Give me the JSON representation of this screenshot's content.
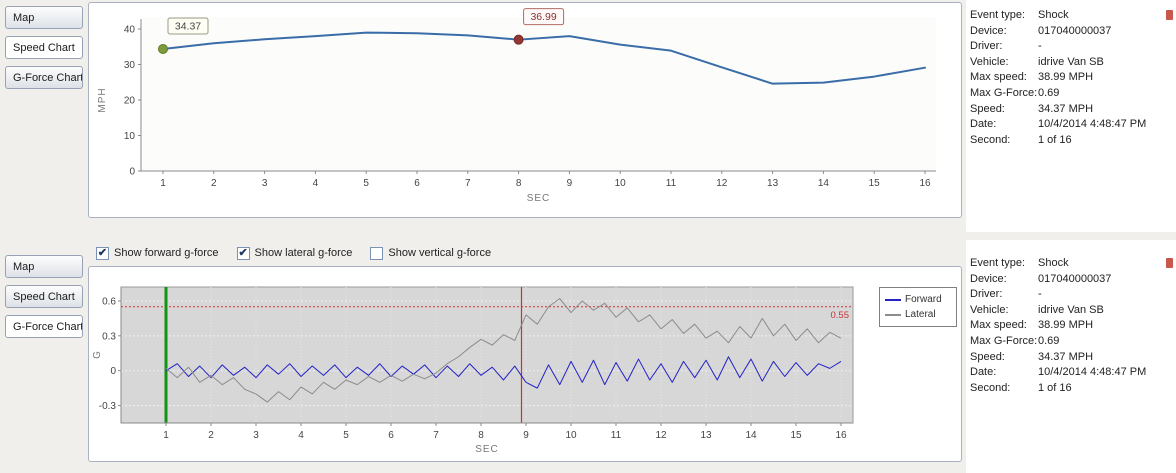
{
  "top_panel": {
    "tabs": [
      {
        "label": "Map",
        "selected": false
      },
      {
        "label": "Speed Chart",
        "selected": true
      },
      {
        "label": "G-Force Chart",
        "selected": false
      }
    ]
  },
  "bottom_panel": {
    "tabs": [
      {
        "label": "Map",
        "selected": false
      },
      {
        "label": "Speed Chart",
        "selected": false
      },
      {
        "label": "G-Force Chart",
        "selected": true
      }
    ],
    "checkboxes": [
      {
        "label": "Show forward g-force",
        "checked": true
      },
      {
        "label": "Show lateral g-force",
        "checked": true
      },
      {
        "label": "Show vertical g-force",
        "checked": false
      }
    ],
    "legend": [
      {
        "label": "Forward",
        "color": "#2323c8"
      },
      {
        "label": "Lateral",
        "color": "#8c8c8c"
      }
    ]
  },
  "info_rows": [
    {
      "label": "Event type:",
      "value": "Shock"
    },
    {
      "label": "Device:",
      "value": "017040000037"
    },
    {
      "label": "Driver:",
      "value": "-"
    },
    {
      "label": "Vehicle:",
      "value": "idrive Van SB"
    },
    {
      "label": "Max speed:",
      "value": "38.99 MPH"
    },
    {
      "label": "Max G-Force:",
      "value": "0.69"
    },
    {
      "label": "Speed:",
      "value": "34.37 MPH"
    },
    {
      "label": "Date:",
      "value": "10/4/2014 4:48:47 PM"
    },
    {
      "label": "Second:",
      "value": "1 of 16"
    }
  ],
  "chart_data": [
    {
      "type": "line",
      "title": "Speed chart",
      "xlabel": "SEC",
      "ylabel": "MPH",
      "x": [
        1,
        2,
        3,
        4,
        5,
        6,
        7,
        8,
        9,
        10,
        11,
        12,
        13,
        14,
        15,
        16
      ],
      "values": [
        34.37,
        36.0,
        37.1,
        38.0,
        38.99,
        38.8,
        38.2,
        36.99,
        38.0,
        35.6,
        33.9,
        29.2,
        24.6,
        24.9,
        26.6,
        29.1
      ],
      "ylim": [
        0,
        40
      ],
      "yticks": [
        0,
        10,
        20,
        30,
        40
      ],
      "xticks": [
        1,
        2,
        3,
        4,
        5,
        6,
        7,
        8,
        9,
        10,
        11,
        12,
        13,
        14,
        15,
        16
      ],
      "line_color": "#3a6da8",
      "markers": [
        {
          "x": 1,
          "y": 34.37,
          "label": "34.37",
          "color": "#7d9b3c",
          "edge": "#5f7a25",
          "label_border": "#9a9a84",
          "label_bg": "#fffef4",
          "text_color": "#444444"
        },
        {
          "x": 8,
          "y": 36.99,
          "label": "36.99",
          "color": "#943634",
          "edge": "#772826",
          "label_border": "#b36a66",
          "label_bg": "#fffafa",
          "text_color": "#8a3030"
        }
      ]
    },
    {
      "type": "line",
      "title": "G-Force chart",
      "xlabel": "SEC",
      "ylabel": "G",
      "x_start": 1,
      "x_step": 0.25,
      "ylim": [
        -0.45,
        0.72
      ],
      "yticks": [
        -0.3,
        0,
        0.3,
        0.6
      ],
      "xticks": [
        1,
        2,
        3,
        4,
        5,
        6,
        7,
        8,
        9,
        10,
        11,
        12,
        13,
        14,
        15,
        16
      ],
      "plot_bg": "#d7d7d7",
      "threshold": {
        "value": 0.55,
        "label": "0.55",
        "color": "#cc3333"
      },
      "vlines": [
        {
          "x": 1,
          "color": "#149314",
          "width": 3
        },
        {
          "x": 8.9,
          "color": "#d03030",
          "width": 1.2
        }
      ],
      "series": [
        {
          "name": "Forward",
          "color": "#2323c8",
          "values": [
            0.0,
            0.06,
            -0.05,
            0.04,
            -0.06,
            0.05,
            -0.04,
            0.03,
            -0.06,
            0.05,
            -0.03,
            0.06,
            -0.05,
            0.04,
            -0.04,
            0.05,
            -0.06,
            0.03,
            -0.04,
            0.06,
            -0.05,
            0.04,
            -0.03,
            0.05,
            -0.06,
            0.04,
            -0.05,
            0.06,
            -0.04,
            0.03,
            -0.08,
            0.04,
            -0.1,
            -0.15,
            0.05,
            -0.12,
            0.08,
            -0.1,
            0.09,
            -0.12,
            0.07,
            -0.09,
            0.1,
            -0.08,
            0.06,
            -0.1,
            0.08,
            -0.06,
            0.09,
            -0.08,
            0.12,
            -0.06,
            0.1,
            -0.09,
            0.08,
            -0.05,
            0.07,
            -0.04,
            0.06,
            0.02,
            0.08
          ]
        },
        {
          "name": "Lateral",
          "color": "#8c8c8c",
          "values": [
            0.02,
            -0.06,
            0.03,
            -0.1,
            -0.04,
            -0.12,
            -0.06,
            -0.16,
            -0.2,
            -0.27,
            -0.18,
            -0.25,
            -0.14,
            -0.2,
            -0.1,
            -0.16,
            -0.08,
            -0.12,
            -0.05,
            -0.1,
            -0.04,
            -0.09,
            -0.03,
            -0.07,
            -0.02,
            0.06,
            0.12,
            0.2,
            0.27,
            0.22,
            0.31,
            0.26,
            0.48,
            0.4,
            0.55,
            0.62,
            0.5,
            0.6,
            0.52,
            0.58,
            0.46,
            0.54,
            0.42,
            0.48,
            0.36,
            0.44,
            0.32,
            0.4,
            0.28,
            0.34,
            0.24,
            0.38,
            0.28,
            0.45,
            0.3,
            0.4,
            0.26,
            0.36,
            0.24,
            0.33,
            0.28
          ]
        }
      ]
    }
  ]
}
